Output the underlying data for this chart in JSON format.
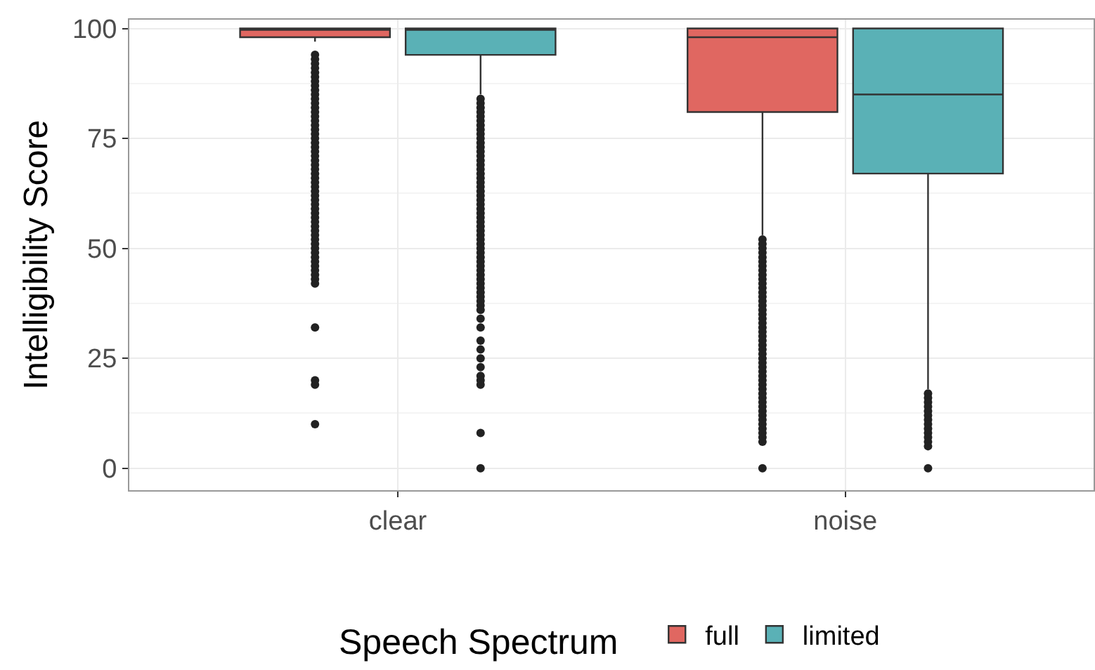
{
  "chart_data": {
    "type": "box",
    "ylabel": "Intelligibility Score",
    "legend_title": "Speech Spectrum",
    "legend": "bottom",
    "grid": true,
    "categories": [
      "clear",
      "noise"
    ],
    "ylim": [
      -5,
      102
    ],
    "yticks": [
      0,
      25,
      50,
      75,
      100
    ],
    "series": [
      {
        "name": "full",
        "color": "#e06761",
        "boxes": [
          {
            "low": 97,
            "q1": 98,
            "median": 100,
            "q3": 100,
            "high": 100,
            "outliers": [
              94,
              93,
              92,
              91,
              90,
              89,
              88,
              87,
              86,
              85,
              84,
              83,
              82,
              81,
              80,
              79,
              78,
              77,
              76,
              75,
              74,
              73,
              72,
              71,
              70,
              69,
              68,
              67,
              66,
              65,
              64,
              63,
              62,
              61,
              60,
              59,
              58,
              57,
              56,
              55,
              54,
              53,
              52,
              51,
              50,
              49,
              48,
              47,
              46,
              45,
              44,
              43,
              42,
              32,
              20,
              19,
              10
            ]
          },
          {
            "low": 53,
            "q1": 81,
            "median": 98,
            "q3": 100,
            "high": 100,
            "outliers": [
              52,
              51,
              50,
              49,
              48,
              47,
              46,
              45,
              44,
              43,
              42,
              41,
              40,
              39,
              38,
              37,
              36,
              35,
              34,
              33,
              32,
              31,
              30,
              29,
              28,
              27,
              26,
              25,
              24,
              23,
              22,
              21,
              20,
              19,
              18,
              17,
              16,
              15,
              14,
              13,
              12,
              11,
              10,
              9,
              8,
              7,
              6,
              0
            ]
          }
        ]
      },
      {
        "name": "limited",
        "color": "#5ab1b6",
        "boxes": [
          {
            "low": 85,
            "q1": 94,
            "median": 100,
            "q3": 100,
            "high": 100,
            "outliers": [
              84,
              83,
              82,
              81,
              80,
              79,
              78,
              77,
              76,
              75,
              74,
              73,
              72,
              71,
              70,
              69,
              68,
              67,
              66,
              65,
              64,
              63,
              62,
              61,
              60,
              59,
              58,
              57,
              56,
              55,
              54,
              53,
              52,
              51,
              50,
              49,
              48,
              47,
              46,
              45,
              44,
              43,
              42,
              41,
              40,
              39,
              38,
              37,
              36,
              34,
              32,
              29,
              27,
              25,
              23,
              21,
              20,
              19,
              8,
              0
            ]
          },
          {
            "low": 18,
            "q1": 67,
            "median": 85,
            "q3": 100,
            "high": 100,
            "outliers": [
              17,
              16,
              15,
              14,
              13,
              12,
              11,
              10,
              9,
              8,
              7,
              6,
              5,
              0
            ]
          }
        ]
      }
    ]
  }
}
